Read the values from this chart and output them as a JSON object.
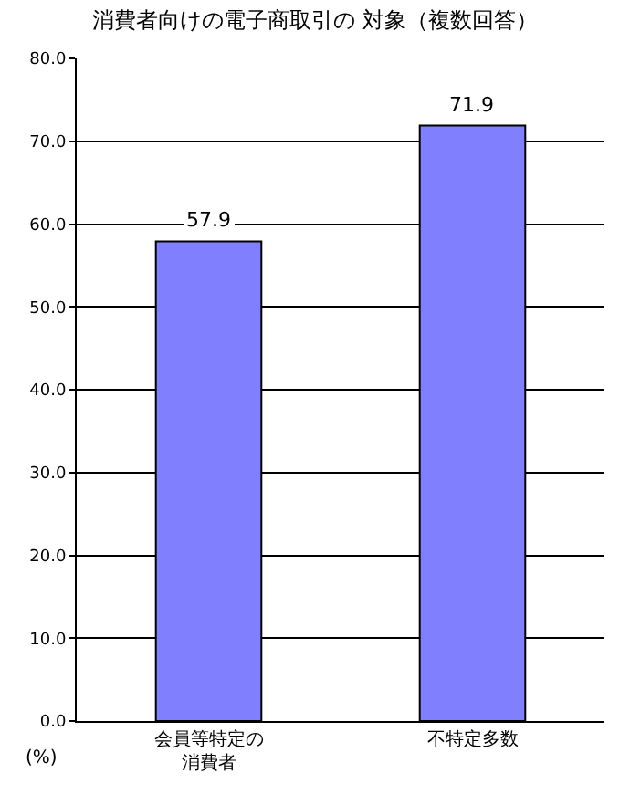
{
  "chart_data": {
    "type": "bar",
    "title": "消費者向けの電子商取引の 対象（複数回答）",
    "ylabel": "(%)",
    "categories": [
      "会員等特定の消費者",
      "不特定多数"
    ],
    "values": [
      57.9,
      71.9
    ],
    "color": "#8080ff",
    "data_labels": true,
    "ylim": [
      0,
      80
    ],
    "yticks": [
      {
        "value": 0,
        "label": "0.0"
      },
      {
        "value": 10,
        "label": "10.0"
      },
      {
        "value": 20,
        "label": "20.0"
      },
      {
        "value": 30,
        "label": "30.0"
      },
      {
        "value": 40,
        "label": "40.0"
      },
      {
        "value": 50,
        "label": "50.0"
      },
      {
        "value": 60,
        "label": "60.0"
      },
      {
        "value": 70,
        "label": "70.0"
      },
      {
        "value": 80,
        "label": "80.0"
      }
    ],
    "grid": "y"
  }
}
